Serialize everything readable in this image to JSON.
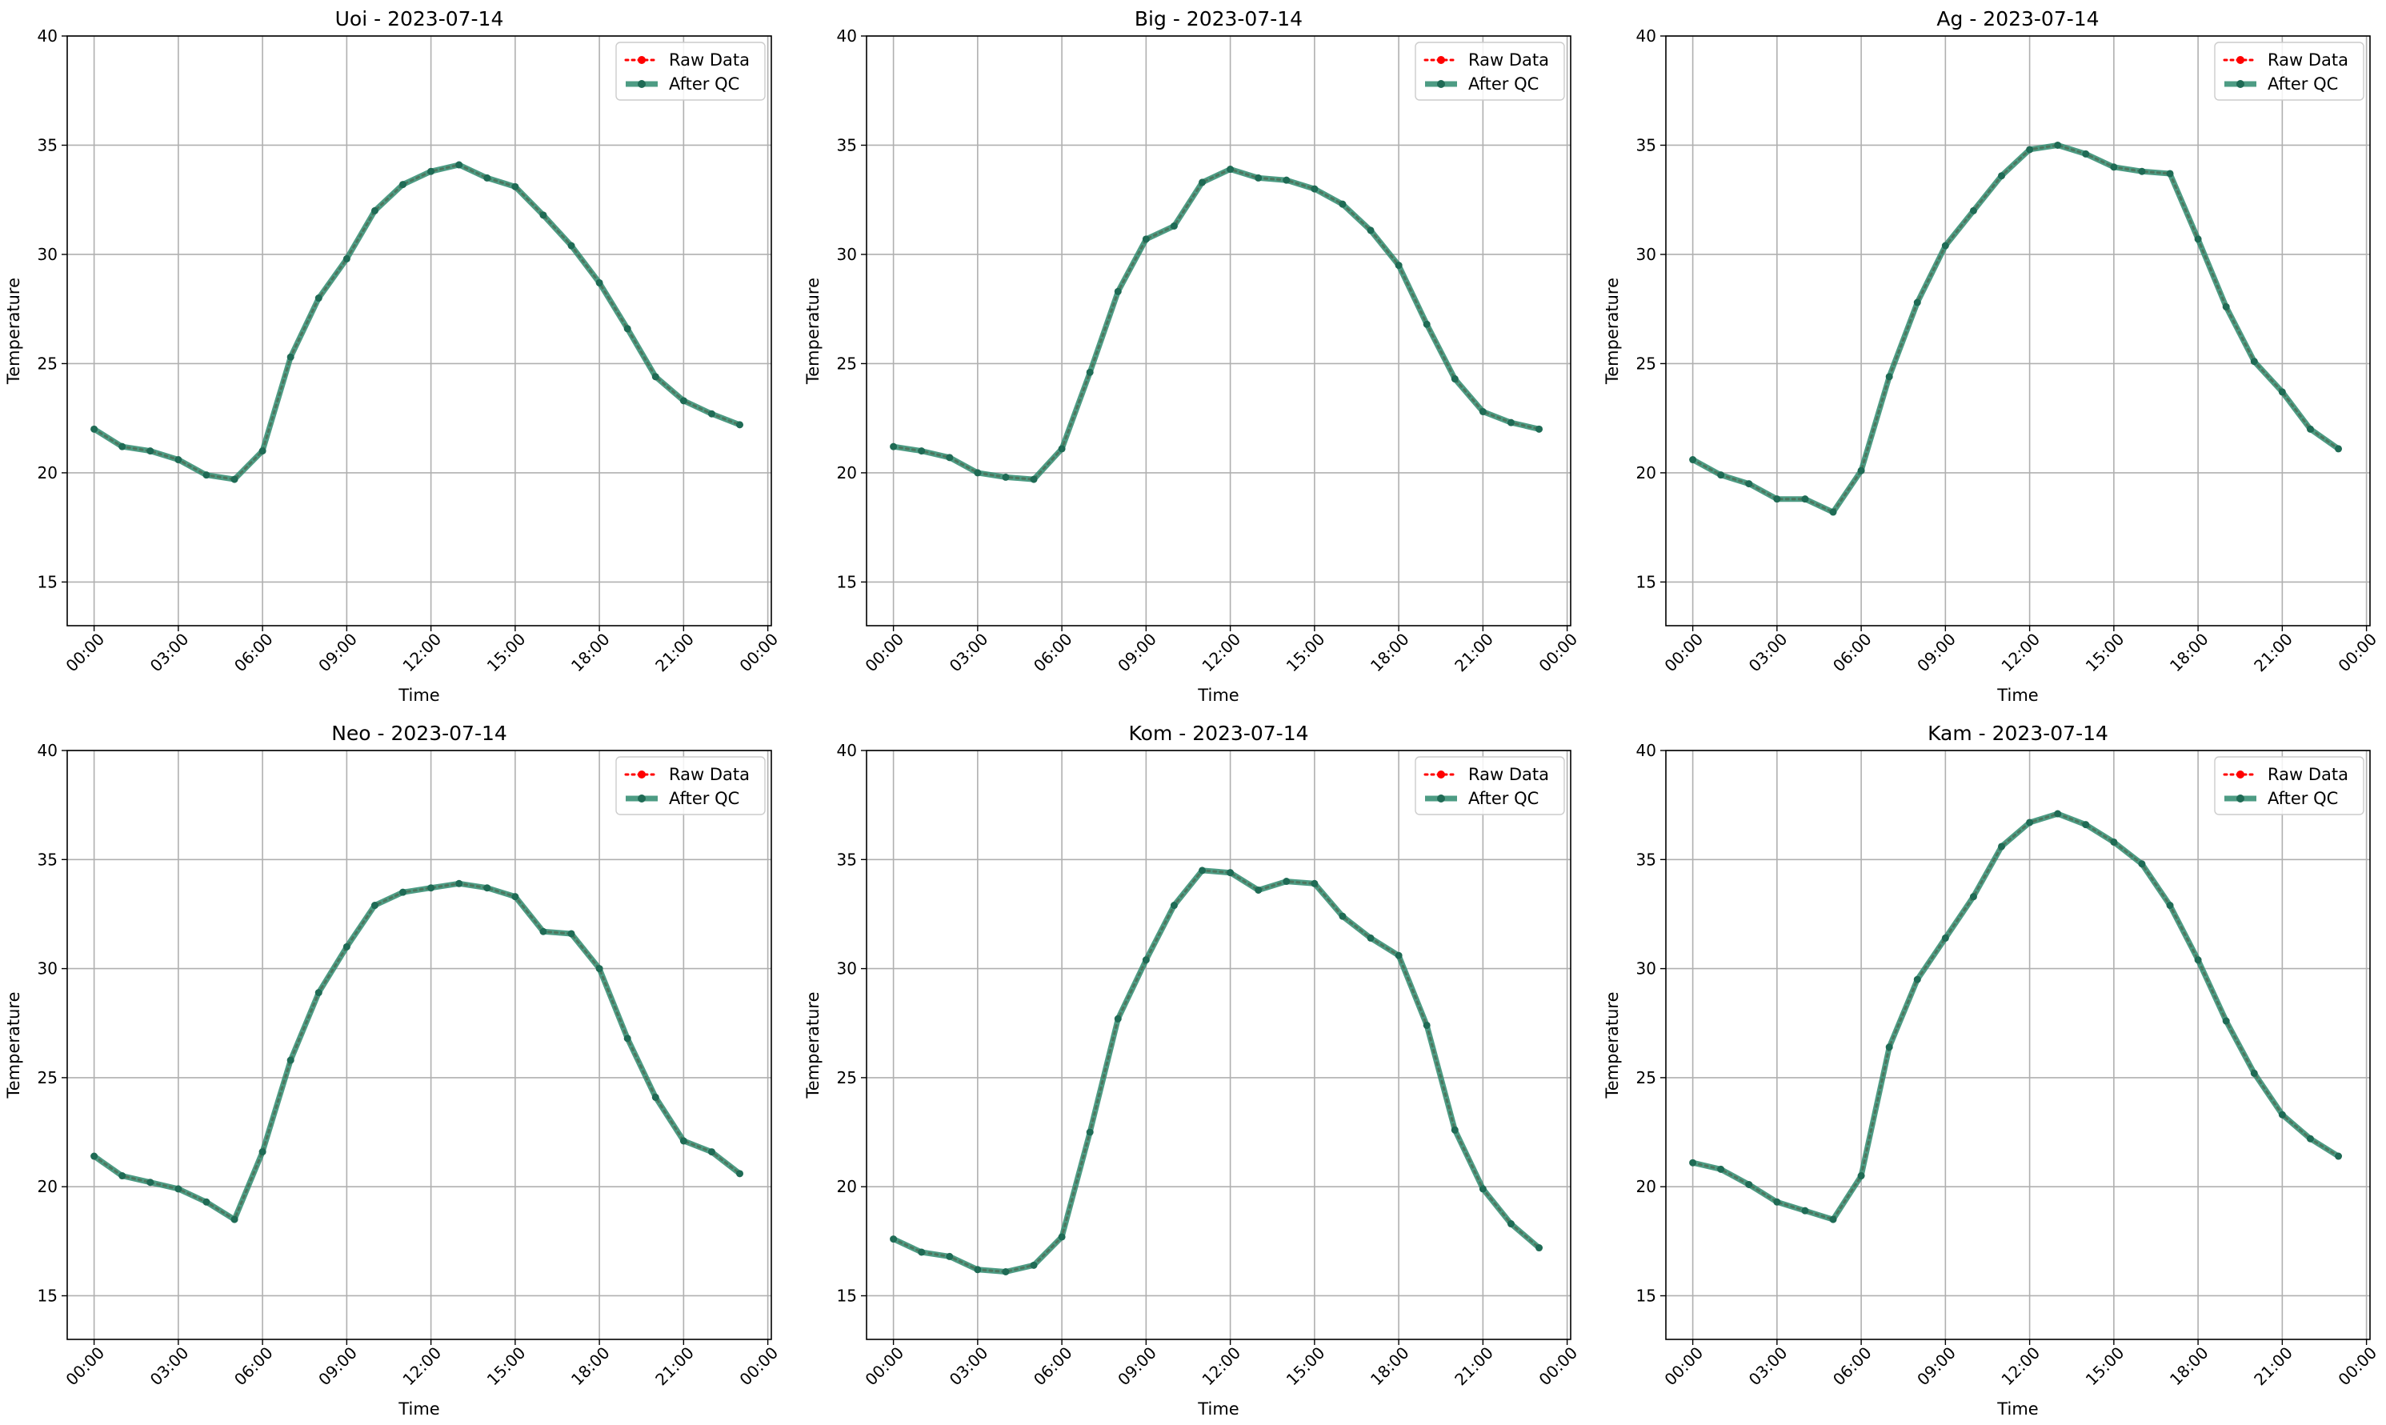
{
  "chart_data": [
    {
      "type": "line",
      "title": "Uoi - 2023-07-14",
      "xlabel": "Time",
      "ylabel": "Temperature",
      "ylim": [
        13,
        40
      ],
      "yticks": [
        15,
        20,
        25,
        30,
        35,
        40
      ],
      "x": [
        "00:00",
        "01:00",
        "02:00",
        "03:00",
        "04:00",
        "05:00",
        "06:00",
        "07:00",
        "08:00",
        "09:00",
        "10:00",
        "11:00",
        "12:00",
        "13:00",
        "14:00",
        "15:00",
        "16:00",
        "17:00",
        "18:00",
        "19:00",
        "20:00",
        "21:00",
        "22:00",
        "23:00"
      ],
      "xticks": [
        "00:00",
        "03:00",
        "06:00",
        "09:00",
        "12:00",
        "15:00",
        "18:00",
        "21:00",
        "00:00"
      ],
      "grid": true,
      "legend": "top-right",
      "series": [
        {
          "name": "Raw Data",
          "color": "#ff0000",
          "values": [
            22.0,
            21.2,
            21.0,
            20.6,
            19.9,
            19.7,
            21.0,
            25.3,
            28.0,
            29.8,
            32.0,
            33.2,
            33.8,
            34.1,
            33.5,
            33.1,
            31.8,
            30.4,
            28.7,
            26.6,
            24.4,
            23.3,
            22.7,
            22.2
          ]
        },
        {
          "name": "After QC",
          "color": "#2e8b6e",
          "values": [
            22.0,
            21.2,
            21.0,
            20.6,
            19.9,
            19.7,
            21.0,
            25.3,
            28.0,
            29.8,
            32.0,
            33.2,
            33.8,
            34.1,
            33.5,
            33.1,
            31.8,
            30.4,
            28.7,
            26.6,
            24.4,
            23.3,
            22.7,
            22.2
          ]
        }
      ]
    },
    {
      "type": "line",
      "title": "Big - 2023-07-14",
      "xlabel": "Time",
      "ylabel": "Temperature",
      "ylim": [
        13,
        40
      ],
      "yticks": [
        15,
        20,
        25,
        30,
        35,
        40
      ],
      "x": [
        "00:00",
        "01:00",
        "02:00",
        "03:00",
        "04:00",
        "05:00",
        "06:00",
        "07:00",
        "08:00",
        "09:00",
        "10:00",
        "11:00",
        "12:00",
        "13:00",
        "14:00",
        "15:00",
        "16:00",
        "17:00",
        "18:00",
        "19:00",
        "20:00",
        "21:00",
        "22:00",
        "23:00"
      ],
      "xticks": [
        "00:00",
        "03:00",
        "06:00",
        "09:00",
        "12:00",
        "15:00",
        "18:00",
        "21:00",
        "00:00"
      ],
      "grid": true,
      "legend": "top-right",
      "series": [
        {
          "name": "Raw Data",
          "color": "#ff0000",
          "values": [
            21.2,
            21.0,
            20.7,
            20.0,
            19.8,
            19.7,
            21.1,
            24.6,
            28.3,
            30.7,
            31.3,
            33.3,
            33.9,
            33.5,
            33.4,
            33.0,
            32.3,
            31.1,
            29.5,
            26.8,
            24.3,
            22.8,
            22.3,
            22.0
          ]
        },
        {
          "name": "After QC",
          "color": "#2e8b6e",
          "values": [
            21.2,
            21.0,
            20.7,
            20.0,
            19.8,
            19.7,
            21.1,
            24.6,
            28.3,
            30.7,
            31.3,
            33.3,
            33.9,
            33.5,
            33.4,
            33.0,
            32.3,
            31.1,
            29.5,
            26.8,
            24.3,
            22.8,
            22.3,
            22.0
          ]
        }
      ]
    },
    {
      "type": "line",
      "title": "Ag - 2023-07-14",
      "xlabel": "Time",
      "ylabel": "Temperature",
      "ylim": [
        13,
        40
      ],
      "yticks": [
        15,
        20,
        25,
        30,
        35,
        40
      ],
      "x": [
        "00:00",
        "01:00",
        "02:00",
        "03:00",
        "04:00",
        "05:00",
        "06:00",
        "07:00",
        "08:00",
        "09:00",
        "10:00",
        "11:00",
        "12:00",
        "13:00",
        "14:00",
        "15:00",
        "16:00",
        "17:00",
        "18:00",
        "19:00",
        "20:00",
        "21:00",
        "22:00",
        "23:00"
      ],
      "xticks": [
        "00:00",
        "03:00",
        "06:00",
        "09:00",
        "12:00",
        "15:00",
        "18:00",
        "21:00",
        "00:00"
      ],
      "grid": true,
      "legend": "top-right",
      "series": [
        {
          "name": "Raw Data",
          "color": "#ff0000",
          "values": [
            20.6,
            19.9,
            19.5,
            18.8,
            18.8,
            18.2,
            20.1,
            24.4,
            27.8,
            30.4,
            32.0,
            33.6,
            34.8,
            35.0,
            34.6,
            34.0,
            33.8,
            33.7,
            30.7,
            27.6,
            25.1,
            23.7,
            22.0,
            21.1
          ]
        },
        {
          "name": "After QC",
          "color": "#2e8b6e",
          "values": [
            20.6,
            19.9,
            19.5,
            18.8,
            18.8,
            18.2,
            20.1,
            24.4,
            27.8,
            30.4,
            32.0,
            33.6,
            34.8,
            35.0,
            34.6,
            34.0,
            33.8,
            33.7,
            30.7,
            27.6,
            25.1,
            23.7,
            22.0,
            21.1
          ]
        }
      ]
    },
    {
      "type": "line",
      "title": "Neo - 2023-07-14",
      "xlabel": "Time",
      "ylabel": "Temperature",
      "ylim": [
        13,
        40
      ],
      "yticks": [
        15,
        20,
        25,
        30,
        35,
        40
      ],
      "x": [
        "00:00",
        "01:00",
        "02:00",
        "03:00",
        "04:00",
        "05:00",
        "06:00",
        "07:00",
        "08:00",
        "09:00",
        "10:00",
        "11:00",
        "12:00",
        "13:00",
        "14:00",
        "15:00",
        "16:00",
        "17:00",
        "18:00",
        "19:00",
        "20:00",
        "21:00",
        "22:00",
        "23:00"
      ],
      "xticks": [
        "00:00",
        "03:00",
        "06:00",
        "09:00",
        "12:00",
        "15:00",
        "18:00",
        "21:00",
        "00:00"
      ],
      "grid": true,
      "legend": "top-right",
      "series": [
        {
          "name": "Raw Data",
          "color": "#ff0000",
          "values": [
            21.4,
            20.5,
            20.2,
            19.9,
            19.3,
            18.5,
            21.6,
            25.8,
            28.9,
            31.0,
            32.9,
            33.5,
            33.7,
            33.9,
            33.7,
            33.3,
            31.7,
            31.6,
            30.0,
            26.8,
            24.1,
            22.1,
            21.6,
            20.6
          ]
        },
        {
          "name": "After QC",
          "color": "#2e8b6e",
          "values": [
            21.4,
            20.5,
            20.2,
            19.9,
            19.3,
            18.5,
            21.6,
            25.8,
            28.9,
            31.0,
            32.9,
            33.5,
            33.7,
            33.9,
            33.7,
            33.3,
            31.7,
            31.6,
            30.0,
            26.8,
            24.1,
            22.1,
            21.6,
            20.6
          ]
        }
      ]
    },
    {
      "type": "line",
      "title": "Kom - 2023-07-14",
      "xlabel": "Time",
      "ylabel": "Temperature",
      "ylim": [
        13,
        40
      ],
      "yticks": [
        15,
        20,
        25,
        30,
        35,
        40
      ],
      "x": [
        "00:00",
        "01:00",
        "02:00",
        "03:00",
        "04:00",
        "05:00",
        "06:00",
        "07:00",
        "08:00",
        "09:00",
        "10:00",
        "11:00",
        "12:00",
        "13:00",
        "14:00",
        "15:00",
        "16:00",
        "17:00",
        "18:00",
        "19:00",
        "20:00",
        "21:00",
        "22:00",
        "23:00"
      ],
      "xticks": [
        "00:00",
        "03:00",
        "06:00",
        "09:00",
        "12:00",
        "15:00",
        "18:00",
        "21:00",
        "00:00"
      ],
      "grid": true,
      "legend": "top-right",
      "series": [
        {
          "name": "Raw Data",
          "color": "#ff0000",
          "values": [
            17.6,
            17.0,
            16.8,
            16.2,
            16.1,
            16.4,
            17.7,
            22.5,
            27.7,
            30.4,
            32.9,
            34.5,
            34.4,
            33.6,
            34.0,
            33.9,
            32.4,
            31.4,
            30.6,
            27.4,
            22.6,
            19.9,
            18.3,
            17.2
          ]
        },
        {
          "name": "After QC",
          "color": "#2e8b6e",
          "values": [
            17.6,
            17.0,
            16.8,
            16.2,
            16.1,
            16.4,
            17.7,
            22.5,
            27.7,
            30.4,
            32.9,
            34.5,
            34.4,
            33.6,
            34.0,
            33.9,
            32.4,
            31.4,
            30.6,
            27.4,
            22.6,
            19.9,
            18.3,
            17.2
          ]
        }
      ]
    },
    {
      "type": "line",
      "title": "Kam - 2023-07-14",
      "xlabel": "Time",
      "ylabel": "Temperature",
      "ylim": [
        13,
        40
      ],
      "yticks": [
        15,
        20,
        25,
        30,
        35,
        40
      ],
      "x": [
        "00:00",
        "01:00",
        "02:00",
        "03:00",
        "04:00",
        "05:00",
        "06:00",
        "07:00",
        "08:00",
        "09:00",
        "10:00",
        "11:00",
        "12:00",
        "13:00",
        "14:00",
        "15:00",
        "16:00",
        "17:00",
        "18:00",
        "19:00",
        "20:00",
        "21:00",
        "22:00",
        "23:00"
      ],
      "xticks": [
        "00:00",
        "03:00",
        "06:00",
        "09:00",
        "12:00",
        "15:00",
        "18:00",
        "21:00",
        "00:00"
      ],
      "grid": true,
      "legend": "top-right",
      "series": [
        {
          "name": "Raw Data",
          "color": "#ff0000",
          "values": [
            21.1,
            20.8,
            20.1,
            19.3,
            18.9,
            18.5,
            20.5,
            26.4,
            29.5,
            31.4,
            33.3,
            35.6,
            36.7,
            37.1,
            36.6,
            35.8,
            34.8,
            32.9,
            30.4,
            27.6,
            25.2,
            23.3,
            22.2,
            21.4
          ]
        },
        {
          "name": "After QC",
          "color": "#2e8b6e",
          "values": [
            21.1,
            20.8,
            20.1,
            19.3,
            18.9,
            18.5,
            20.5,
            26.4,
            29.5,
            31.4,
            33.3,
            35.6,
            36.7,
            37.1,
            36.6,
            35.8,
            34.8,
            32.9,
            30.4,
            27.6,
            25.2,
            23.3,
            22.2,
            21.4
          ]
        }
      ]
    }
  ]
}
